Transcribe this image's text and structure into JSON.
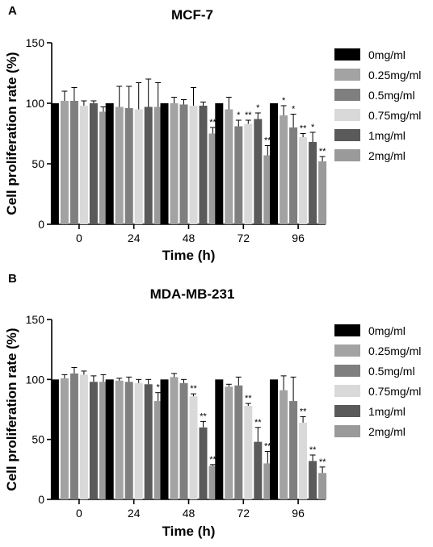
{
  "chart_data": [
    {
      "panel": "A",
      "type": "bar",
      "title": "MCF-7",
      "xlabel": "Time (h)",
      "ylabel": "Cell proliferation rate (%)",
      "ylim": [
        0,
        150
      ],
      "yticks": [
        0,
        50,
        100,
        150
      ],
      "categories": [
        "0",
        "24",
        "48",
        "72",
        "96"
      ],
      "legend_position": "right",
      "grid": false,
      "series": [
        {
          "name": "0mg/ml",
          "color": "#000000",
          "values": [
            100,
            100,
            100,
            100,
            100
          ],
          "errors": [
            0,
            0,
            0,
            0,
            0
          ],
          "sig": [
            "",
            "",
            "",
            "",
            ""
          ]
        },
        {
          "name": "0.25mg/ml",
          "color": "#a3a3a3",
          "values": [
            102,
            97,
            100,
            95,
            90
          ],
          "errors": [
            8,
            17,
            5,
            10,
            8
          ],
          "sig": [
            "",
            "",
            "",
            "",
            "*"
          ]
        },
        {
          "name": "0.5mg/ml",
          "color": "#7f7f7f",
          "values": [
            102,
            96,
            99,
            81,
            80
          ],
          "errors": [
            11,
            18,
            4,
            5,
            11
          ],
          "sig": [
            "",
            "",
            "",
            "*",
            "*"
          ]
        },
        {
          "name": "0.75mg/ml",
          "color": "#d9d9d9",
          "values": [
            98,
            95,
            98,
            83,
            72
          ],
          "errors": [
            4,
            22,
            15,
            3,
            3
          ],
          "sig": [
            "",
            "",
            "",
            "**",
            "**"
          ]
        },
        {
          "name": "1mg/ml",
          "color": "#5a5a5a",
          "values": [
            100,
            97,
            98,
            87,
            68
          ],
          "errors": [
            2,
            23,
            3,
            5,
            8
          ],
          "sig": [
            "",
            "",
            "",
            "*",
            "*"
          ]
        },
        {
          "name": "2mg/ml",
          "color": "#9a9a9a",
          "values": [
            93,
            97,
            75,
            57,
            52
          ],
          "errors": [
            4,
            20,
            5,
            8,
            4
          ],
          "sig": [
            "",
            "",
            "**",
            "**",
            "**"
          ]
        }
      ]
    },
    {
      "panel": "B",
      "type": "bar",
      "title": "MDA-MB-231",
      "xlabel": "Time (h)",
      "ylabel": "Cell proliferation rate (%)",
      "ylim": [
        0,
        150
      ],
      "yticks": [
        0,
        50,
        100,
        150
      ],
      "categories": [
        "0",
        "24",
        "48",
        "72",
        "96"
      ],
      "legend_position": "right",
      "grid": false,
      "series": [
        {
          "name": "0mg/ml",
          "color": "#000000",
          "values": [
            100,
            100,
            100,
            100,
            100
          ],
          "errors": [
            0,
            0,
            0,
            0,
            0
          ],
          "sig": [
            "",
            "",
            "",
            "",
            ""
          ]
        },
        {
          "name": "0.25mg/ml",
          "color": "#a3a3a3",
          "values": [
            101,
            99,
            102,
            94,
            91
          ],
          "errors": [
            3,
            2,
            3,
            2,
            12
          ],
          "sig": [
            "",
            "",
            "",
            "",
            ""
          ]
        },
        {
          "name": "0.5mg/ml",
          "color": "#7f7f7f",
          "values": [
            105,
            98,
            97,
            95,
            82
          ],
          "errors": [
            5,
            4,
            3,
            7,
            20
          ],
          "sig": [
            "",
            "",
            "",
            "",
            ""
          ]
        },
        {
          "name": "0.75mg/ml",
          "color": "#d9d9d9",
          "values": [
            104,
            97,
            86,
            78,
            64
          ],
          "errors": [
            3,
            3,
            2,
            2,
            5
          ],
          "sig": [
            "",
            "",
            "**",
            "**",
            "**"
          ]
        },
        {
          "name": "1mg/ml",
          "color": "#5a5a5a",
          "values": [
            98,
            96,
            60,
            48,
            32
          ],
          "errors": [
            5,
            4,
            5,
            12,
            5
          ],
          "sig": [
            "",
            "",
            "**",
            "**",
            "**"
          ]
        },
        {
          "name": "2mg/ml",
          "color": "#9a9a9a",
          "values": [
            98,
            82,
            28,
            30,
            22
          ],
          "errors": [
            6,
            7,
            1,
            10,
            5
          ],
          "sig": [
            "",
            "*",
            "**",
            "**",
            "**"
          ]
        }
      ]
    }
  ]
}
